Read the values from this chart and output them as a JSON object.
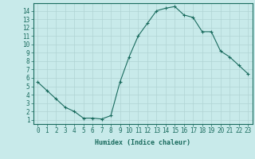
{
  "x": [
    0,
    1,
    2,
    3,
    4,
    5,
    6,
    7,
    8,
    9,
    10,
    11,
    12,
    13,
    14,
    15,
    16,
    17,
    18,
    19,
    20,
    21,
    22,
    23
  ],
  "y": [
    5.5,
    4.5,
    3.5,
    2.5,
    2.0,
    1.2,
    1.2,
    1.1,
    1.5,
    5.5,
    8.5,
    11.0,
    12.5,
    14.0,
    14.3,
    14.5,
    13.5,
    13.2,
    11.5,
    11.5,
    9.2,
    8.5,
    7.5,
    6.5
  ],
  "line_color": "#1a6b5e",
  "marker": "+",
  "bg_color": "#c8eaea",
  "grid_color": "#b0d4d4",
  "xlabel": "Humidex (Indice chaleur)",
  "xlim": [
    -0.5,
    23.5
  ],
  "ylim": [
    0.5,
    14.9
  ],
  "xticks": [
    0,
    1,
    2,
    3,
    4,
    5,
    6,
    7,
    8,
    9,
    10,
    11,
    12,
    13,
    14,
    15,
    16,
    17,
    18,
    19,
    20,
    21,
    22,
    23
  ],
  "yticks": [
    1,
    2,
    3,
    4,
    5,
    6,
    7,
    8,
    9,
    10,
    11,
    12,
    13,
    14
  ],
  "axis_color": "#1a6b5e",
  "label_fontsize": 6,
  "tick_fontsize": 5.5
}
